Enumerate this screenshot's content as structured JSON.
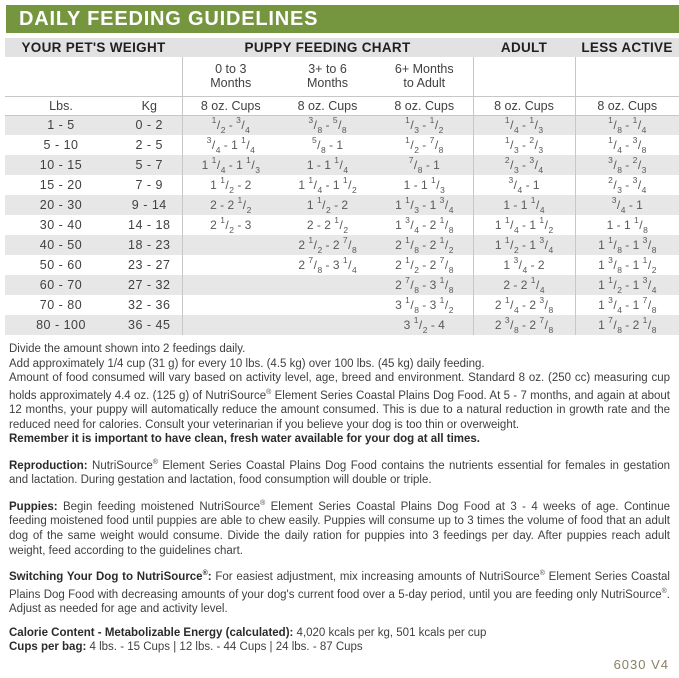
{
  "title": "DAILY FEEDING GUIDELINES",
  "colors": {
    "brand_green": "#75953f",
    "header_band_gray": "#e2e2e2",
    "row_stripe_gray": "#e7e7e8",
    "rule_line_gray": "#c6c7c9",
    "text_dark": "#414042",
    "fraction_gray": "#58595b",
    "footer_olive": "#8b8065"
  },
  "table": {
    "section_headers": [
      "YOUR PET'S WEIGHT",
      "PUPPY FEEDING CHART",
      "ADULT",
      "LESS ACTIVE"
    ],
    "month_headers": [
      "0 to 3\nMonths",
      "3+ to 6\nMonths",
      "6+ Months\nto Adult"
    ],
    "unit_row": [
      "Lbs.",
      "Kg",
      "8 oz. Cups",
      "8 oz. Cups",
      "8 oz. Cups",
      "8 oz. Cups",
      "8 oz. Cups"
    ],
    "rows": [
      [
        "1 - 5",
        "0 - 2",
        "1/2 - 3/4",
        "3/8 - 5/8",
        "1/3 - 1/2",
        "1/4 - 1/3",
        "1/8 - 1/4"
      ],
      [
        "5 - 10",
        "2 - 5",
        "3/4 - 1 1/4",
        "5/8 - 1",
        "1/2 - 7/8",
        "1/3 - 2/3",
        "1/4 - 3/8"
      ],
      [
        "10 - 15",
        "5 - 7",
        "1 1/4 - 1 1/3",
        "1 - 1 1/4",
        "7/8 - 1",
        "2/3 - 3/4",
        "3/8 - 2/3"
      ],
      [
        "15 - 20",
        "7 - 9",
        "1 1/2 - 2",
        "1 1/4 - 1 1/2",
        "1 - 1 1/3",
        "3/4 - 1",
        "2/3 - 3/4"
      ],
      [
        "20 - 30",
        "9 - 14",
        "2 - 2 1/2",
        "1 1/2 - 2",
        "1 1/3 - 1 3/4",
        "1 - 1 1/4",
        "3/4 - 1"
      ],
      [
        "30 - 40",
        "14 - 18",
        "2 1/2 - 3",
        "2 - 2 1/2",
        "1 3/4 - 2 1/8",
        "1 1/4 - 1 1/2",
        "1 - 1 1/8"
      ],
      [
        "40 - 50",
        "18 - 23",
        "",
        "2 1/2 - 2 7/8",
        "2 1/8 - 2 1/2",
        "1 1/2 - 1 3/4",
        "1 1/8 - 1 3/8"
      ],
      [
        "50 - 60",
        "23 - 27",
        "",
        "2 7/8 - 3 1/4",
        "2 1/2 - 2 7/8",
        "1 3/4 - 2",
        "1 3/8 - 1 1/2"
      ],
      [
        "60 - 70",
        "27 - 32",
        "",
        "",
        "2 7/8 - 3 1/8",
        "2 - 2 1/4",
        "1 1/2 - 1 3/4"
      ],
      [
        "70 - 80",
        "32 - 36",
        "",
        "",
        "3 1/8 - 3 1/2",
        "2 1/4 - 2 3/8",
        "1 3/4 - 1 7/8"
      ],
      [
        "80 - 100",
        "36 - 45",
        "",
        "",
        "3 1/2 - 4",
        "2 3/8 - 2 7/8",
        "1 7/8 - 2 1/8"
      ]
    ]
  },
  "notes": [
    {
      "lead": "",
      "text": "Divide the amount shown into 2 feedings daily.",
      "bold": false,
      "justify": false,
      "gap": false
    },
    {
      "lead": "",
      "text": "Add approximately 1/4 cup (31 g) for every 10 lbs. (4.5 kg) over 100 lbs. (45 kg) daily feeding.",
      "bold": false,
      "justify": false,
      "gap": false
    },
    {
      "lead": "",
      "text": "Amount of food consumed will vary based on activity level, age, breed and environment. Standard 8 oz. (250 cc) measuring cup holds approximately 4.4 oz. (125 g) of NutriSource® Element Series Coastal Plains Dog Food. At 5 - 7 months, and again at about 12 months, your puppy will automatically reduce the amount consumed. This is due to a natural reduction in growth rate and the reduced need for calories. Consult your veterinarian if you believe your dog is too thin or overweight.",
      "bold": false,
      "justify": true,
      "gap": false
    },
    {
      "lead": "",
      "text": "Remember it is important to have clean, fresh water available for your dog at all times.",
      "bold": true,
      "justify": false,
      "gap": false
    },
    {
      "lead": "Reproduction:",
      "text": "NutriSource® Element Series Coastal Plains Dog Food contains the nutrients essential for females in gestation and lactation. During gestation and lactation, food consumption will double or triple.",
      "bold": false,
      "justify": true,
      "gap": true
    },
    {
      "lead": "Puppies:",
      "text": "Begin feeding moistened NutriSource® Element Series Coastal Plains Dog Food at 3 - 4 weeks of age. Continue feeding moistened food until puppies are able to chew easily. Puppies will consume up to 3 times the volume of food that an adult dog of the same weight would consume. Divide the daily ration for puppies into 3 feedings per day. After puppies reach adult weight, feed according to the guidelines chart.",
      "bold": false,
      "justify": true,
      "gap": true
    },
    {
      "lead": "Switching Your Dog to NutriSource®:",
      "text": "For easiest adjustment, mix increasing amounts of NutriSource® Element Series Coastal Plains Dog Food with decreasing amounts of your dog's current food over a 5-day period, until you are feeding only NutriSource®. Adjust as needed for age and activity level.",
      "bold": false,
      "justify": true,
      "gap": true
    },
    {
      "lead": "Calorie Content - Metabolizable Energy (calculated):",
      "text": "4,020 kcals per kg, 501 kcals per cup",
      "bold": false,
      "justify": false,
      "gap": true
    },
    {
      "lead": "Cups per bag:",
      "text": "4 lbs. - 15 Cups  |  12 lbs. - 44 Cups  |  24 lbs. -  87 Cups",
      "bold": false,
      "justify": false,
      "gap": false
    }
  ],
  "footer_code": "6030 V4"
}
